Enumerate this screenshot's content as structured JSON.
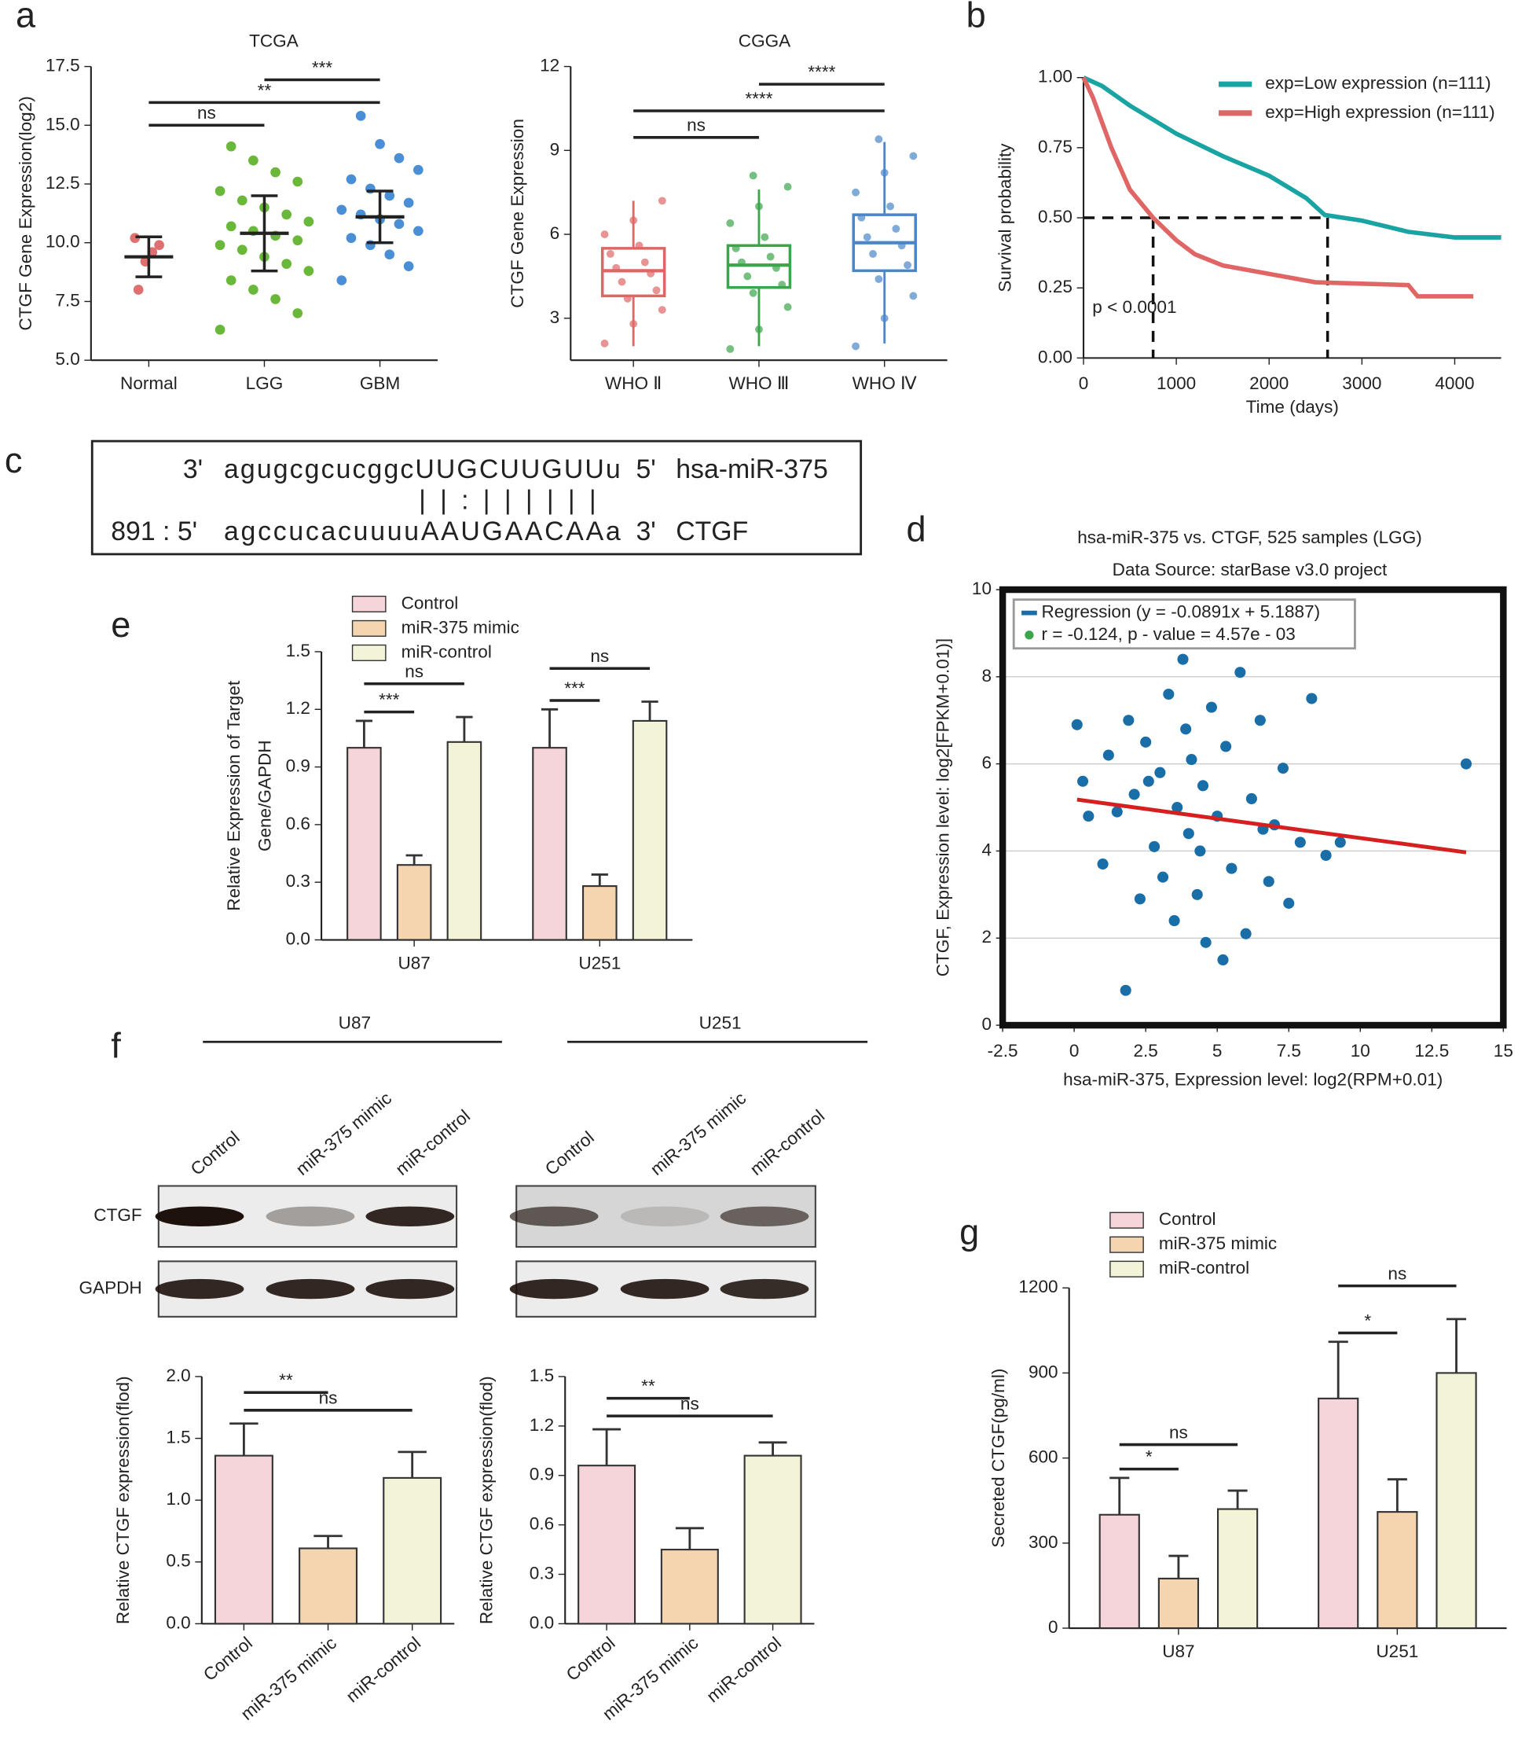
{
  "panel_labels": [
    "a",
    "b",
    "c",
    "d",
    "e",
    "f",
    "g"
  ],
  "alignment": {
    "row1": {
      "end5": "3'",
      "seq": "agugcgcucggcUUGCUUGUUu",
      "end3": "5'",
      "name": "hsa-miR-375"
    },
    "pairs": "| | : | | | | | |",
    "row2": {
      "end5": "891 : 5'",
      "seq": "agccucacuuuuAAUGAACAAa",
      "end3": "3'",
      "name": "CTGF"
    }
  },
  "blot": {
    "groups": [
      "U87",
      "U251"
    ],
    "lanes": [
      "Control",
      "miR-375 mimic",
      "miR-control"
    ],
    "rows": [
      "CTGF",
      "GAPDH"
    ]
  },
  "chart_data": [
    {
      "type": "dotplot",
      "title": "TCGA",
      "ylabel": "CTGF Gene Expression(log2)",
      "categories": [
        "Normal",
        "LGG",
        "GBM"
      ],
      "colors": [
        "#e07070",
        "#6ab83a",
        "#4a8fd6"
      ],
      "points": [
        [
          10.2,
          9.9,
          9.6,
          9.2,
          8.0
        ],
        [
          6.3,
          7.0,
          7.6,
          8.0,
          8.4,
          8.8,
          9.1,
          9.4,
          9.7,
          9.9,
          10.1,
          10.3,
          10.5,
          10.7,
          10.9,
          11.2,
          11.5,
          11.8,
          12.2,
          12.6,
          13.0,
          13.5,
          14.1
        ],
        [
          8.4,
          9.0,
          9.5,
          9.9,
          10.2,
          10.5,
          10.8,
          11.0,
          11.2,
          11.4,
          11.7,
          12.0,
          12.3,
          12.7,
          13.1,
          13.6,
          14.2,
          15.4
        ]
      ],
      "means": [
        9.4,
        10.4,
        11.1
      ],
      "sd": [
        0.85,
        1.6,
        1.1
      ],
      "ylim": [
        5,
        17.5
      ],
      "yticks": [
        {
          "value": 5,
          "label": "5.0"
        },
        7.5,
        {
          "value": 10,
          "label": "10.0"
        },
        12.5,
        {
          "value": 15,
          "label": "15.0"
        },
        17.5
      ],
      "comparisons": [
        {
          "from": 0,
          "to": 1,
          "label": "ns"
        },
        {
          "from": 0,
          "to": 2,
          "label": "**"
        },
        {
          "from": 1,
          "to": 2,
          "label": "***"
        }
      ]
    },
    {
      "type": "box",
      "title": "CGGA",
      "ylabel": "CTGF Gene Expression",
      "categories": [
        "WHO Ⅱ",
        "WHO Ⅲ",
        "WHO Ⅳ"
      ],
      "colors": [
        "#e06666",
        "#3aa54a",
        "#4a86c8"
      ],
      "min": [
        2.0,
        2.0,
        2.1
      ],
      "q1": [
        3.8,
        4.1,
        4.7
      ],
      "median": [
        4.7,
        4.9,
        5.7
      ],
      "q3": [
        5.5,
        5.6,
        6.7
      ],
      "max": [
        7.2,
        7.6,
        9.3
      ],
      "points": [
        [
          2.1,
          2.8,
          3.3,
          3.7,
          4.0,
          4.3,
          4.6,
          4.8,
          5.0,
          5.3,
          5.6,
          6.0,
          6.5,
          7.2
        ],
        [
          1.9,
          2.6,
          3.4,
          3.9,
          4.2,
          4.5,
          4.8,
          5.0,
          5.2,
          5.5,
          5.9,
          6.4,
          7.0,
          7.7,
          8.1
        ],
        [
          2.0,
          3.0,
          3.8,
          4.4,
          4.9,
          5.3,
          5.6,
          5.9,
          6.2,
          6.6,
          7.0,
          7.5,
          8.2,
          8.8,
          9.4
        ]
      ],
      "ylim": [
        1.5,
        12
      ],
      "yticks": [
        3,
        6,
        9,
        12
      ],
      "comparisons": [
        {
          "from": 0,
          "to": 1,
          "label": "ns"
        },
        {
          "from": 0,
          "to": 2,
          "label": "****"
        },
        {
          "from": 1,
          "to": 2,
          "label": "****"
        }
      ]
    },
    {
      "type": "line",
      "xlabel": "Time (days)",
      "ylabel": "Survival probability",
      "annotation": "p < 0.0001",
      "xlim": [
        0,
        4500
      ],
      "xticks": [
        0,
        1000,
        2000,
        3000,
        4000
      ],
      "ylim": [
        0,
        1
      ],
      "yticks": [
        {
          "value": 0,
          "label": "0.00"
        },
        {
          "value": 0.25,
          "label": "0.25"
        },
        {
          "value": 0.5,
          "label": "0.50"
        },
        {
          "value": 0.75,
          "label": "0.75"
        },
        {
          "value": 1,
          "label": "1.00"
        }
      ],
      "median_survival": 0.5,
      "median_times": [
        750,
        2630
      ],
      "series": [
        {
          "name": "exp=Low expression (n=111)",
          "color": "#1aa3a3",
          "x": [
            0,
            200,
            500,
            800,
            1000,
            1500,
            2000,
            2400,
            2600,
            3000,
            3500,
            4000,
            4500
          ],
          "values": [
            1,
            0.97,
            0.9,
            0.84,
            0.8,
            0.72,
            0.65,
            0.57,
            0.51,
            0.49,
            0.45,
            0.43,
            0.43
          ]
        },
        {
          "name": "exp=High expression (n=111)",
          "color": "#e06666",
          "x": [
            0,
            100,
            300,
            500,
            750,
            1000,
            1200,
            1500,
            2000,
            2500,
            3500,
            3600,
            4200
          ],
          "values": [
            1,
            0.93,
            0.75,
            0.6,
            0.5,
            0.42,
            0.37,
            0.33,
            0.3,
            0.27,
            0.26,
            0.22,
            0.22
          ]
        }
      ]
    },
    {
      "type": "scatter",
      "title": "hsa-miR-375 vs. CTGF, 525 samples (LGG)",
      "subtitle": "Data Source: starBase v3.0 project",
      "xlabel": "hsa-miR-375, Expression level: log2(RPM+0.01)",
      "ylabel": "CTGF, Expression level: log2[FPKM+0.01)]",
      "xlim": [
        -2.5,
        15
      ],
      "xticks": [
        -2.5,
        0,
        2.5,
        5,
        7.5,
        10,
        12.5,
        15
      ],
      "ylim": [
        0,
        10
      ],
      "yticks": [
        0,
        2,
        4,
        6,
        8,
        10
      ],
      "grid": true,
      "color": "#1a6ea8",
      "x": [
        0.1,
        0.3,
        0.5,
        1.0,
        1.2,
        1.5,
        1.8,
        1.9,
        2.1,
        2.3,
        2.5,
        2.8,
        3.0,
        3.1,
        3.3,
        3.5,
        3.6,
        3.8,
        4.0,
        4.1,
        4.3,
        4.5,
        4.6,
        4.8,
        5.0,
        5.2,
        5.3,
        5.5,
        5.8,
        6.0,
        6.2,
        6.5,
        6.8,
        7.0,
        7.3,
        7.5,
        7.9,
        8.3,
        8.8,
        9.3,
        13.7,
        2.6,
        4.4,
        6.6,
        3.9
      ],
      "values": [
        6.9,
        5.6,
        4.8,
        3.7,
        6.2,
        4.9,
        0.8,
        7.0,
        5.3,
        2.9,
        6.5,
        4.1,
        5.8,
        3.4,
        7.6,
        2.4,
        5.0,
        8.4,
        4.4,
        6.1,
        3.0,
        5.5,
        1.9,
        7.3,
        4.8,
        1.5,
        6.4,
        3.6,
        8.1,
        2.1,
        5.2,
        7.0,
        3.3,
        4.6,
        5.9,
        2.8,
        4.2,
        7.5,
        3.9,
        4.2,
        6.0,
        5.6,
        4.0,
        4.5,
        6.8
      ],
      "regression": {
        "slope": -0.0891,
        "intercept": 5.1887,
        "color": "#d62020",
        "label": "Regression (y = -0.0891x + 5.1887)"
      },
      "stat_label": "r = -0.124, p - value = 4.57e - 03"
    },
    {
      "type": "bar",
      "ylabel": [
        "Relative Expression of Target",
        "Gene/GAPDH"
      ],
      "categories": [
        "U87",
        "U251"
      ],
      "ylim": [
        0,
        1.5
      ],
      "yticks": [
        {
          "value": 0,
          "label": "0.0"
        },
        0.3,
        0.6,
        0.9,
        1.2,
        1.5
      ],
      "series": [
        {
          "name": "Control",
          "color": "#f6d5da",
          "values": [
            1.0,
            1.0
          ],
          "errors": [
            0.14,
            0.2
          ]
        },
        {
          "name": "miR-375 mimic",
          "color": "#f5d5b0",
          "values": [
            0.39,
            0.28
          ],
          "errors": [
            0.05,
            0.06
          ]
        },
        {
          "name": "miR-control",
          "color": "#f3f3d8",
          "values": [
            1.03,
            1.14
          ],
          "errors": [
            0.13,
            0.1
          ]
        }
      ],
      "comparisons": [
        {
          "group": 0,
          "from": 0,
          "to": 1,
          "label": "***"
        },
        {
          "group": 0,
          "from": 0,
          "to": 2,
          "label": "ns"
        },
        {
          "group": 1,
          "from": 0,
          "to": 1,
          "label": "***"
        },
        {
          "group": 1,
          "from": 0,
          "to": 2,
          "label": "ns"
        }
      ]
    },
    {
      "type": "bar",
      "ylabel": "Relative CTGF expression(flod)",
      "categories": [
        "Control",
        "miR-375 mimic",
        "miR-control"
      ],
      "colors": [
        "#f6d5da",
        "#f5d5b0",
        "#f3f3d8"
      ],
      "values": [
        1.36,
        0.61,
        1.18
      ],
      "errors": [
        0.26,
        0.1,
        0.21
      ],
      "ylim": [
        0,
        2
      ],
      "yticks": [
        {
          "value": 0,
          "label": "0.0"
        },
        0.5,
        {
          "value": 1,
          "label": "1.0"
        },
        1.5,
        {
          "value": 2,
          "label": "2.0"
        }
      ],
      "comparisons": [
        {
          "from": 0,
          "to": 1,
          "label": "**"
        },
        {
          "from": 0,
          "to": 2,
          "label": "ns"
        }
      ]
    },
    {
      "type": "bar",
      "ylabel": "Relative CTGF expression(flod)",
      "categories": [
        "Control",
        "miR-375 mimic",
        "miR-control"
      ],
      "colors": [
        "#f6d5da",
        "#f5d5b0",
        "#f3f3d8"
      ],
      "values": [
        0.96,
        0.45,
        1.02
      ],
      "errors": [
        0.22,
        0.13,
        0.08
      ],
      "ylim": [
        0,
        1.5
      ],
      "yticks": [
        {
          "value": 0,
          "label": "0.0"
        },
        0.3,
        0.6,
        0.9,
        1.2,
        1.5
      ],
      "comparisons": [
        {
          "from": 0,
          "to": 1,
          "label": "**"
        },
        {
          "from": 0,
          "to": 2,
          "label": "ns"
        }
      ]
    },
    {
      "type": "bar",
      "ylabel": "Secreted CTGF(pg/ml)",
      "categories": [
        "U87",
        "U251"
      ],
      "ylim": [
        0,
        1200
      ],
      "yticks": [
        0,
        300,
        600,
        900,
        1200
      ],
      "series": [
        {
          "name": "Control",
          "color": "#f6d5da",
          "values": [
            400,
            810
          ],
          "errors": [
            130,
            200
          ]
        },
        {
          "name": "miR-375 mimic",
          "color": "#f5d5b0",
          "values": [
            175,
            410
          ],
          "errors": [
            80,
            115
          ]
        },
        {
          "name": "miR-control",
          "color": "#f3f3d8",
          "values": [
            420,
            900
          ],
          "errors": [
            65,
            190
          ]
        }
      ],
      "comparisons": [
        {
          "group": 0,
          "from": 0,
          "to": 1,
          "label": "*"
        },
        {
          "group": 0,
          "from": 0,
          "to": 2,
          "label": "ns"
        },
        {
          "group": 1,
          "from": 0,
          "to": 1,
          "label": "*"
        },
        {
          "group": 1,
          "from": 0,
          "to": 2,
          "label": "ns"
        }
      ]
    }
  ]
}
